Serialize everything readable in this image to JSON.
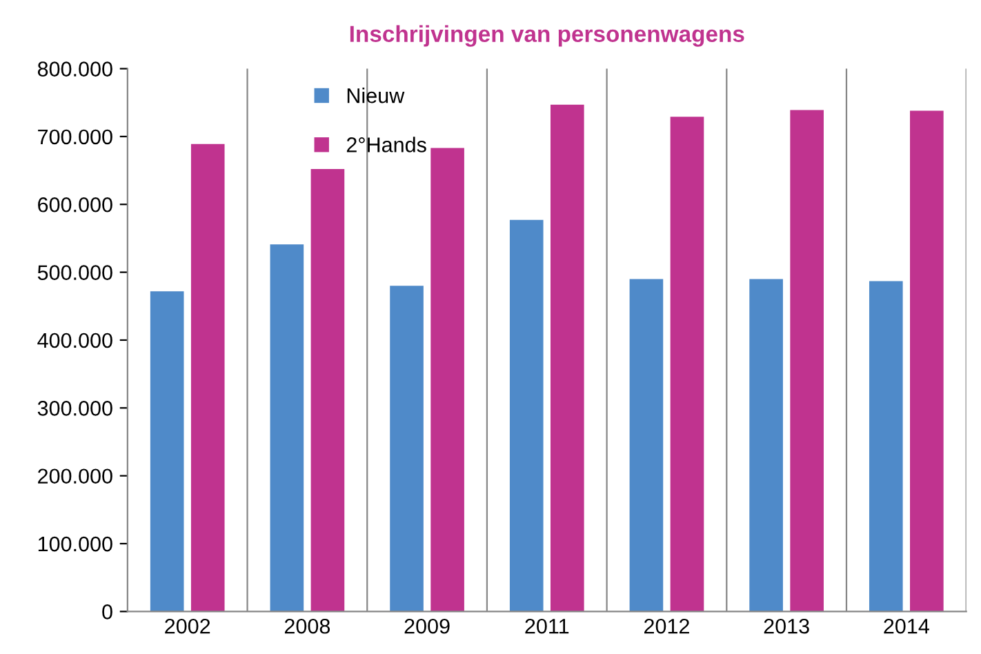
{
  "chart_data": {
    "type": "bar",
    "title": "Inschrijvingen van personenwagens",
    "categories": [
      "2002",
      "2008",
      "2009",
      "2011",
      "2012",
      "2013",
      "2014"
    ],
    "series": [
      {
        "name": "Nieuw",
        "color": "#4f8ac9",
        "values": [
          472000,
          541000,
          480000,
          577000,
          490000,
          490000,
          487000
        ]
      },
      {
        "name": "2°Hands",
        "color": "#c0338f",
        "values": [
          689000,
          652000,
          683000,
          747000,
          729000,
          739000,
          738000
        ]
      }
    ],
    "ylim": [
      0,
      800000
    ],
    "yticks": [
      0,
      {
        "value": 100000,
        "label": "100.000"
      },
      {
        "value": 200000,
        "label": "200.000"
      },
      {
        "value": 300000,
        "label": "300.000"
      },
      {
        "value": 400000,
        "label": "400.000"
      },
      {
        "value": 500000,
        "label": "500.000"
      },
      {
        "value": 600000,
        "label": "600.000"
      },
      {
        "value": 700000,
        "label": "700.000"
      },
      {
        "value": 800000,
        "label": "800.000"
      }
    ],
    "grid": "x",
    "legend": "top left"
  }
}
